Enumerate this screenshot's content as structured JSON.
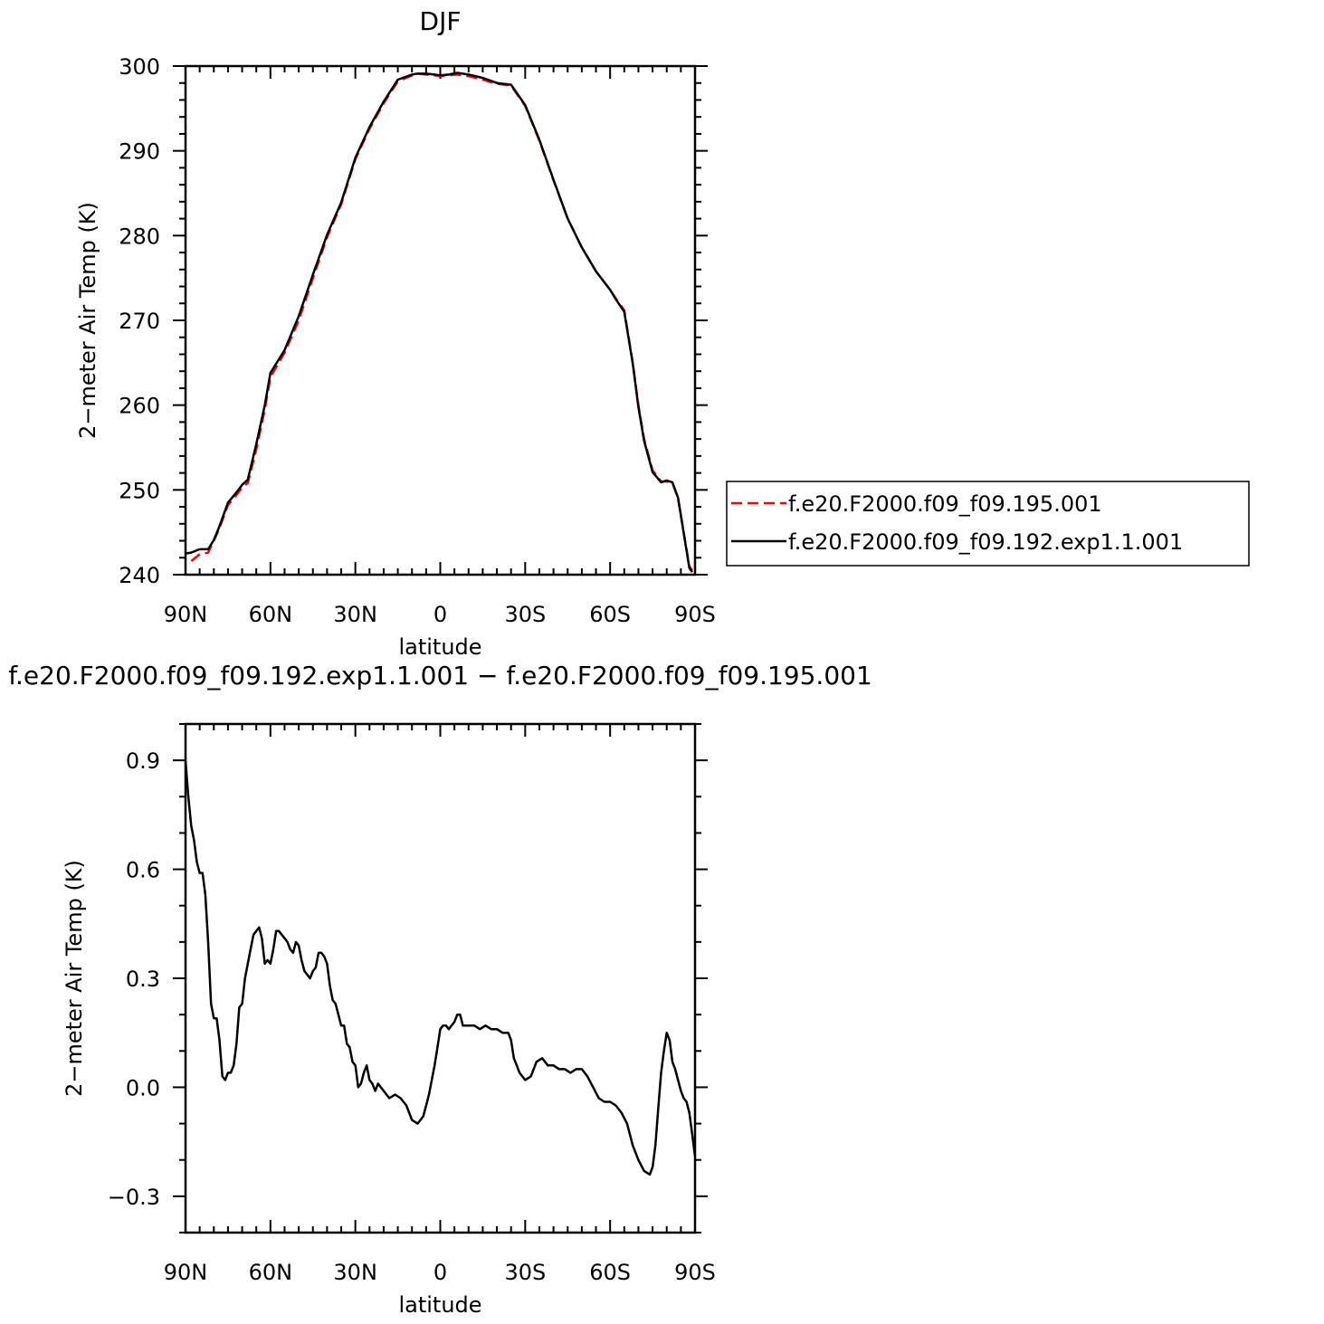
{
  "chart_data": [
    {
      "type": "line",
      "title": "DJF",
      "xlabel": "latitude",
      "ylabel": "2−meter Air Temp (K)",
      "xlim": [
        90,
        -90
      ],
      "ylim": [
        240,
        300
      ],
      "x_ticks": [
        {
          "value": 90,
          "label": "90N"
        },
        {
          "value": 60,
          "label": "60N"
        },
        {
          "value": 30,
          "label": "30N"
        },
        {
          "value": 0,
          "label": "0"
        },
        {
          "value": -30,
          "label": "30S"
        },
        {
          "value": -60,
          "label": "60S"
        },
        {
          "value": -90,
          "label": "90S"
        }
      ],
      "y_ticks": [
        {
          "value": 300,
          "label": "300"
        },
        {
          "value": 290,
          "label": "290"
        },
        {
          "value": 280,
          "label": "280"
        },
        {
          "value": 270,
          "label": "270"
        },
        {
          "value": 260,
          "label": "260"
        },
        {
          "value": 250,
          "label": "250"
        },
        {
          "value": 240,
          "label": "240"
        }
      ],
      "legend": "right",
      "series": [
        {
          "name": "f.e20.F2000.f09_f09.195.001",
          "color": "#ff0000",
          "dash": "dashed",
          "x": [
            88,
            85,
            82,
            80,
            78,
            75,
            72,
            70,
            68,
            65,
            62,
            60,
            55,
            50,
            45,
            40,
            35,
            30,
            25,
            20,
            15,
            10,
            8,
            5,
            2,
            0,
            -3,
            -6,
            -10,
            -15,
            -20,
            -25,
            -30,
            -35,
            -40,
            -45,
            -50,
            -55,
            -60,
            -62,
            -65,
            -68,
            -70,
            -72,
            -75,
            -78,
            -80,
            -82,
            -84,
            -86,
            -88,
            -89
          ],
          "values": [
            241.6,
            242.4,
            242.6,
            244.0,
            245.5,
            248.2,
            249.4,
            250.3,
            250.8,
            254.8,
            259.5,
            263.3,
            266.2,
            270.0,
            275.0,
            279.8,
            283.7,
            289.0,
            292.6,
            295.6,
            298.2,
            298.9,
            299.1,
            299.0,
            298.9,
            298.8,
            298.9,
            299.0,
            298.8,
            298.4,
            297.9,
            297.7,
            295.3,
            291.2,
            286.5,
            282.0,
            278.6,
            275.8,
            273.6,
            272.6,
            271.2,
            265.0,
            260.0,
            256.0,
            252.3,
            251.0,
            251.0,
            250.8,
            249.0,
            245.0,
            241.0,
            240.5
          ]
        },
        {
          "name": "f.e20.F2000.f09_f09.192.exp1.1.001",
          "color": "#000000",
          "dash": "solid",
          "x": [
            90,
            88,
            85,
            82,
            80,
            78,
            75,
            72,
            70,
            68,
            65,
            62,
            60,
            55,
            50,
            45,
            40,
            35,
            30,
            25,
            20,
            15,
            10,
            8,
            5,
            2,
            0,
            -3,
            -6,
            -10,
            -15,
            -20,
            -25,
            -30,
            -35,
            -40,
            -45,
            -50,
            -55,
            -60,
            -62,
            -65,
            -68,
            -70,
            -72,
            -75,
            -78,
            -80,
            -82,
            -84,
            -86,
            -88,
            -89
          ],
          "values": [
            242.5,
            242.6,
            243.0,
            243.0,
            244.1,
            245.7,
            248.5,
            249.7,
            250.6,
            251.2,
            255.4,
            260.0,
            263.8,
            266.5,
            270.5,
            275.4,
            280.1,
            283.9,
            289.2,
            292.8,
            295.8,
            298.4,
            299.0,
            299.1,
            299.1,
            299.0,
            298.9,
            299.0,
            299.2,
            299.0,
            298.6,
            298.0,
            297.8,
            295.4,
            291.3,
            286.6,
            282.0,
            278.6,
            275.8,
            273.6,
            272.5,
            271.0,
            264.9,
            259.8,
            255.8,
            252.1,
            250.9,
            251.1,
            250.9,
            249.1,
            244.9,
            240.8,
            240.3
          ]
        }
      ]
    },
    {
      "type": "line",
      "title": "f.e20.F2000.f09_f09.192.exp1.1.001 − f.e20.F2000.f09_f09.195.001",
      "xlabel": "latitude",
      "ylabel": "2−meter Air Temp (K)",
      "xlim": [
        90,
        -90
      ],
      "ylim": [
        -0.4,
        1.0
      ],
      "x_ticks": [
        {
          "value": 90,
          "label": "90N"
        },
        {
          "value": 60,
          "label": "60N"
        },
        {
          "value": 30,
          "label": "30N"
        },
        {
          "value": 0,
          "label": "0"
        },
        {
          "value": -30,
          "label": "30S"
        },
        {
          "value": -60,
          "label": "60S"
        },
        {
          "value": -90,
          "label": "90S"
        }
      ],
      "y_ticks": [
        {
          "value": 0.9,
          "label": "0.9"
        },
        {
          "value": 0.6,
          "label": "0.6"
        },
        {
          "value": 0.3,
          "label": "0.3"
        },
        {
          "value": 0.0,
          "label": "0.0"
        },
        {
          "value": -0.3,
          "label": "−0.3"
        }
      ],
      "series": [
        {
          "color": "#000000",
          "x": [
            90,
            89,
            88,
            87,
            86,
            85,
            84,
            83,
            82,
            81,
            80,
            79,
            78,
            77,
            76,
            75,
            74,
            73,
            72,
            71,
            70,
            69,
            68,
            67,
            66,
            65,
            64,
            63,
            62,
            61,
            60,
            59,
            58,
            57,
            56,
            55,
            54,
            53,
            52,
            51,
            50,
            49,
            48,
            47,
            46,
            45,
            44,
            43,
            42,
            41,
            40,
            39,
            38,
            37,
            36,
            35,
            34,
            33,
            32,
            31,
            30,
            29,
            28,
            27,
            26,
            25,
            24,
            23,
            22,
            21,
            20,
            18,
            16,
            14,
            13,
            12,
            11,
            10,
            8,
            6,
            5,
            4,
            3,
            2,
            1,
            0,
            -1,
            -2,
            -3,
            -4,
            -5,
            -6,
            -7,
            -8,
            -10,
            -12,
            -14,
            -16,
            -18,
            -20,
            -22,
            -24,
            -25,
            -26,
            -27,
            -28,
            -29,
            -30,
            -32,
            -34,
            -36,
            -38,
            -40,
            -42,
            -44,
            -46,
            -48,
            -50,
            -52,
            -54,
            -56,
            -58,
            -60,
            -62,
            -64,
            -66,
            -68,
            -70,
            -72,
            -74,
            -75,
            -76,
            -77,
            -78,
            -79,
            -80,
            -81,
            -82,
            -83,
            -84,
            -85,
            -86,
            -87,
            -88,
            -89,
            -90
          ],
          "values": [
            0.9,
            0.8,
            0.72,
            0.68,
            0.62,
            0.59,
            0.59,
            0.53,
            0.4,
            0.23,
            0.19,
            0.19,
            0.13,
            0.03,
            0.02,
            0.04,
            0.04,
            0.06,
            0.12,
            0.22,
            0.23,
            0.3,
            0.34,
            0.38,
            0.42,
            0.43,
            0.44,
            0.41,
            0.34,
            0.35,
            0.34,
            0.38,
            0.43,
            0.43,
            0.42,
            0.41,
            0.4,
            0.38,
            0.37,
            0.4,
            0.39,
            0.35,
            0.32,
            0.31,
            0.3,
            0.32,
            0.33,
            0.37,
            0.37,
            0.36,
            0.34,
            0.28,
            0.24,
            0.23,
            0.2,
            0.17,
            0.17,
            0.12,
            0.11,
            0.07,
            0.06,
            0.0,
            0.01,
            0.04,
            0.06,
            0.02,
            0.01,
            -0.01,
            0.01,
            0.0,
            -0.01,
            -0.03,
            -0.02,
            -0.03,
            -0.04,
            -0.05,
            -0.07,
            -0.09,
            -0.1,
            -0.08,
            -0.05,
            -0.02,
            0.02,
            0.06,
            0.11,
            0.16,
            0.17,
            0.17,
            0.16,
            0.17,
            0.18,
            0.2,
            0.2,
            0.17,
            0.17,
            0.17,
            0.16,
            0.17,
            0.16,
            0.16,
            0.15,
            0.15,
            0.13,
            0.08,
            0.06,
            0.04,
            0.03,
            0.02,
            0.03,
            0.07,
            0.08,
            0.06,
            0.06,
            0.05,
            0.05,
            0.04,
            0.05,
            0.05,
            0.03,
            0.0,
            -0.03,
            -0.04,
            -0.04,
            -0.05,
            -0.07,
            -0.1,
            -0.16,
            -0.2,
            -0.23,
            -0.24,
            -0.22,
            -0.16,
            -0.06,
            0.04,
            0.1,
            0.15,
            0.13,
            0.07,
            0.05,
            0.02,
            -0.01,
            -0.03,
            -0.04,
            -0.07,
            -0.13,
            -0.19
          ]
        }
      ]
    }
  ]
}
